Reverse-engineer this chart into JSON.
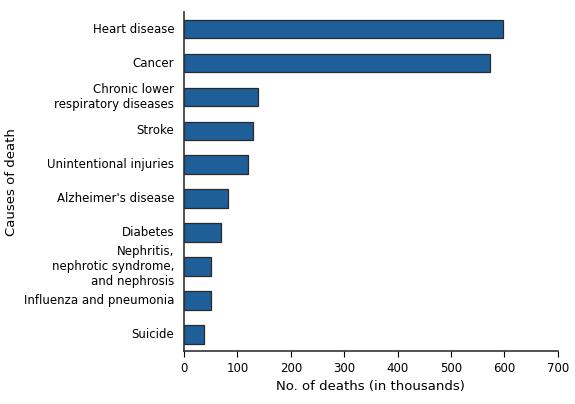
{
  "categories": [
    "Heart disease",
    "Cancer",
    "Chronic lower\nrespiratory diseases",
    "Stroke",
    "Unintentional injuries",
    "Alzheimer's disease",
    "Diabetes",
    "Nephritis,\nnephrotic syndrome,\nand nephrosis",
    "Influenza and pneumonia",
    "Suicide"
  ],
  "values": [
    597,
    574,
    138,
    129,
    120,
    83,
    69,
    50,
    50,
    38
  ],
  "bar_color": "#1F5F99",
  "bar_edgecolor": "#2a2a2a",
  "xlabel": "No. of deaths (in thousands)",
  "ylabel": "Causes of death",
  "xlim": [
    0,
    700
  ],
  "xticks": [
    0,
    100,
    200,
    300,
    400,
    500,
    600,
    700
  ],
  "background_color": "#ffffff",
  "bar_height": 0.55,
  "tick_fontsize": 8.5,
  "label_fontsize": 9.5
}
